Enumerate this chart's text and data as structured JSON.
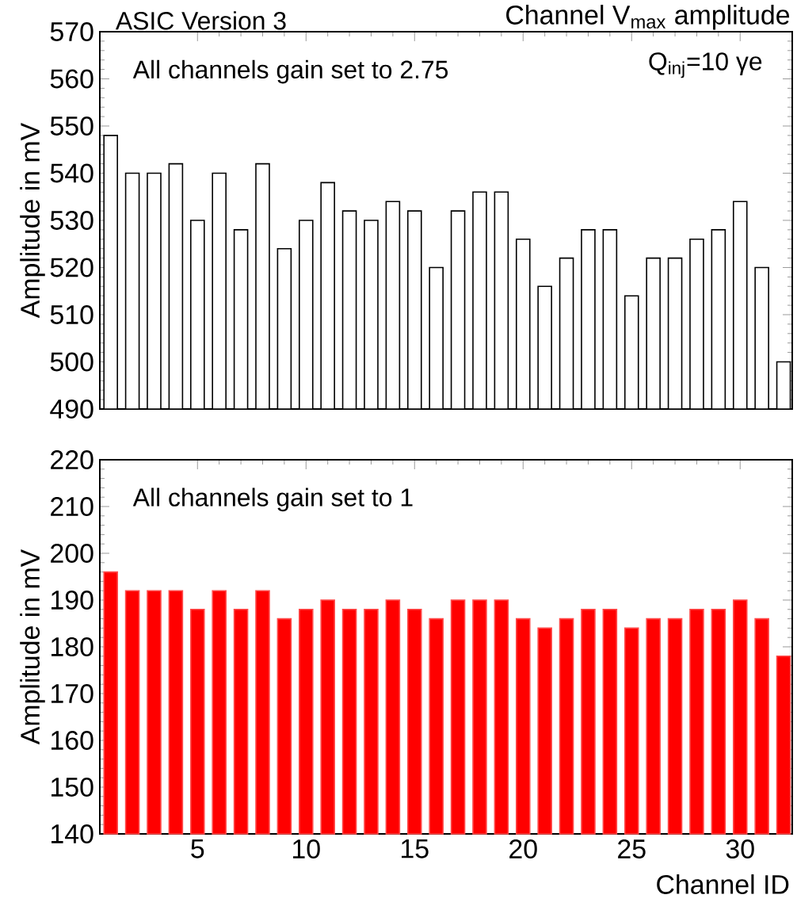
{
  "chart_data": [
    {
      "type": "bar",
      "title": "ASIC Version 3",
      "subtitle": "Channel V$_{max}$ amplitude",
      "ylabel": "Amplitude in mV",
      "annotations": [
        "All channels gain set to 2.75",
        "Q$_{inj}$=10 γe"
      ],
      "x": [
        1,
        2,
        3,
        4,
        5,
        6,
        7,
        8,
        9,
        10,
        11,
        12,
        13,
        14,
        15,
        16,
        17,
        18,
        19,
        20,
        21,
        22,
        23,
        24,
        25,
        26,
        27,
        28,
        29,
        30,
        31,
        32
      ],
      "values": [
        548,
        540,
        540,
        542,
        530,
        540,
        528,
        542,
        524,
        530,
        538,
        532,
        530,
        534,
        532,
        520,
        532,
        536,
        536,
        526,
        516,
        522,
        528,
        528,
        514,
        522,
        522,
        526,
        528,
        534,
        520,
        500
      ],
      "color": "#ffffff",
      "xlim": [
        0.5,
        32.4
      ],
      "xticks": [
        5,
        10,
        15,
        20,
        25,
        30
      ],
      "ylim": [
        490,
        570
      ],
      "yticks": [
        490,
        500,
        510,
        520,
        530,
        540,
        550,
        560,
        570
      ],
      "tick_labels": "y"
    },
    {
      "type": "bar",
      "xlabel": "Channel ID",
      "ylabel": "Amplitude in mV",
      "annotations": [
        "All channels gain set to 1"
      ],
      "x": [
        1,
        2,
        3,
        4,
        5,
        6,
        7,
        8,
        9,
        10,
        11,
        12,
        13,
        14,
        15,
        16,
        17,
        18,
        19,
        20,
        21,
        22,
        23,
        24,
        25,
        26,
        27,
        28,
        29,
        30,
        31,
        32
      ],
      "values": [
        196,
        192,
        192,
        192,
        188,
        192,
        188,
        192,
        186,
        188,
        190,
        188,
        188,
        190,
        188,
        186,
        190,
        190,
        190,
        186,
        184,
        186,
        188,
        188,
        184,
        186,
        186,
        188,
        188,
        190,
        186,
        178
      ],
      "color": "#ff0000",
      "xlim": [
        0.5,
        32.4
      ],
      "xticks": [
        5,
        10,
        15,
        20,
        25,
        30
      ],
      "ylim": [
        140,
        220
      ],
      "yticks": [
        140,
        150,
        160,
        170,
        180,
        190,
        200,
        210,
        220
      ]
    }
  ]
}
